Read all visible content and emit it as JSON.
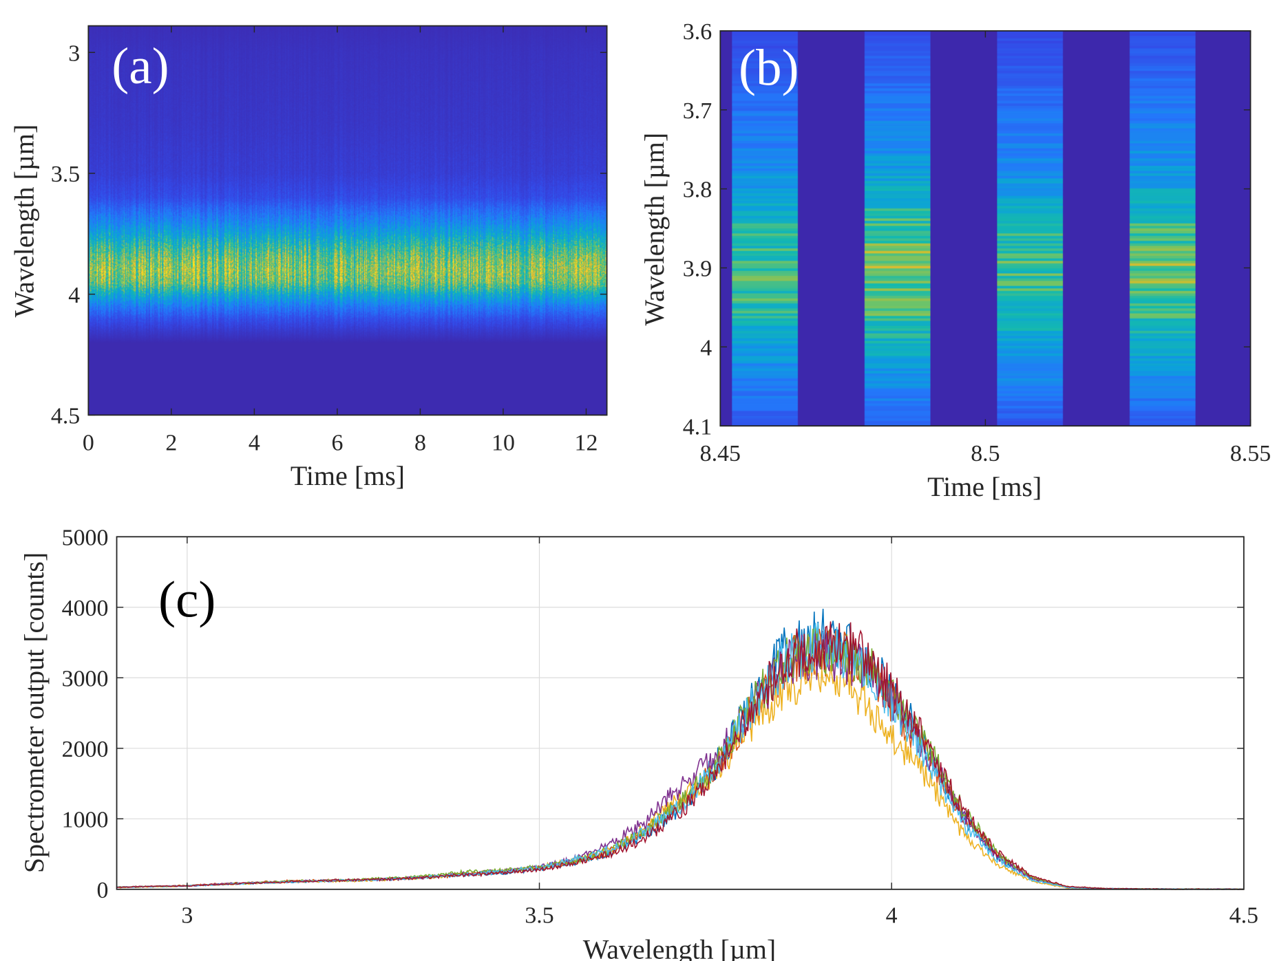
{
  "chart_data": [
    {
      "panel": "(a)",
      "type": "heatmap",
      "xlabel": "Time [ms]",
      "ylabel": "Wavelength [µm]",
      "xlim": [
        0,
        12.5
      ],
      "ylim": [
        2.89,
        4.5
      ],
      "y_reversed": true,
      "xticks": [
        0,
        2,
        4,
        6,
        8,
        10,
        12
      ],
      "xtick_labels": [
        "0",
        "2",
        "4",
        "6",
        "8",
        "10",
        "12"
      ],
      "yticks": [
        3,
        3.5,
        4,
        4.5
      ],
      "ytick_labels": [
        "3",
        "3.5",
        "4",
        "4.5"
      ],
      "colormap": "parula",
      "grid": false,
      "label_color": "#ffffff",
      "intensity_profile": {
        "wavelength": [
          2.89,
          3.0,
          3.3,
          3.5,
          3.6,
          3.7,
          3.75,
          3.8,
          3.85,
          3.9,
          3.95,
          4.0,
          4.05,
          4.1,
          4.15,
          4.2,
          4.5
        ],
        "relative": [
          0.02,
          0.04,
          0.06,
          0.09,
          0.15,
          0.35,
          0.48,
          0.62,
          0.74,
          0.8,
          0.74,
          0.5,
          0.3,
          0.16,
          0.07,
          0.0,
          0.0
        ]
      }
    },
    {
      "panel": "(b)",
      "type": "heatmap",
      "xlabel": "Time [ms]",
      "ylabel": "Wavelength [µm]",
      "xlim": [
        8.45,
        8.55
      ],
      "ylim": [
        3.6,
        4.1
      ],
      "y_reversed": true,
      "xticks": [
        8.45,
        8.5,
        8.55
      ],
      "xtick_labels": [
        "8.45",
        "8.5",
        "8.55"
      ],
      "yticks": [
        3.6,
        3.7,
        3.8,
        3.9,
        4.0,
        4.1
      ],
      "ytick_labels": [
        "3.6",
        "3.7",
        "3.8",
        "3.9",
        "4",
        "4.1"
      ],
      "colormap": "parula",
      "grid": false,
      "label_color": "#ffffff",
      "pulses": [
        {
          "start": 8.4522,
          "end": 8.4646,
          "scale": 0.95
        },
        {
          "start": 8.4772,
          "end": 8.4896,
          "scale": 1.07
        },
        {
          "start": 8.5022,
          "end": 8.5146,
          "scale": 0.95
        },
        {
          "start": 8.5272,
          "end": 8.5396,
          "scale": 1.05
        }
      ],
      "intensity_profile": {
        "wavelength": [
          3.6,
          3.65,
          3.7,
          3.75,
          3.8,
          3.85,
          3.9,
          3.95,
          4.0,
          4.05,
          4.1
        ],
        "relative": [
          0.16,
          0.22,
          0.3,
          0.36,
          0.46,
          0.62,
          0.7,
          0.64,
          0.48,
          0.34,
          0.2
        ]
      }
    },
    {
      "panel": "(c)",
      "type": "line",
      "xlabel": "Wavelength [µm]",
      "ylabel": "Spectrometer output [counts]",
      "xlim": [
        2.9,
        4.5
      ],
      "ylim": [
        0,
        5000
      ],
      "xticks": [
        3,
        3.5,
        4,
        4.5
      ],
      "xtick_labels": [
        "3",
        "3.5",
        "4",
        "4.5"
      ],
      "yticks": [
        0,
        1000,
        2000,
        3000,
        4000,
        5000
      ],
      "ytick_labels": [
        "0",
        "1000",
        "2000",
        "3000",
        "4000",
        "5000"
      ],
      "grid": true,
      "x": [
        2.9,
        2.95,
        3.0,
        3.05,
        3.1,
        3.15,
        3.2,
        3.25,
        3.3,
        3.35,
        3.4,
        3.45,
        3.5,
        3.55,
        3.6,
        3.65,
        3.7,
        3.75,
        3.8,
        3.85,
        3.9,
        3.95,
        4.0,
        4.05,
        4.1,
        4.15,
        4.2,
        4.25,
        4.3,
        4.35,
        4.4,
        4.45,
        4.5
      ],
      "series": [
        {
          "color": "#0072BD",
          "values": [
            30,
            40,
            50,
            70,
            90,
            110,
            120,
            130,
            150,
            180,
            210,
            240,
            290,
            380,
            520,
            780,
            1150,
            1750,
            2650,
            3400,
            3600,
            3450,
            2850,
            2000,
            1050,
            450,
            140,
            30,
            10,
            4,
            2,
            1,
            0
          ]
        },
        {
          "color": "#D95319",
          "values": [
            30,
            40,
            55,
            80,
            100,
            120,
            125,
            130,
            150,
            175,
            215,
            250,
            300,
            390,
            540,
            820,
            1250,
            1700,
            2500,
            3200,
            3400,
            3250,
            2650,
            1900,
            1050,
            480,
            160,
            35,
            10,
            4,
            2,
            1,
            0
          ]
        },
        {
          "color": "#EDB120",
          "values": [
            25,
            35,
            45,
            70,
            90,
            105,
            115,
            125,
            145,
            175,
            220,
            255,
            310,
            410,
            560,
            850,
            1300,
            1650,
            2300,
            2900,
            3000,
            2800,
            2200,
            1600,
            800,
            350,
            110,
            20,
            8,
            3,
            1,
            0,
            0
          ]
        },
        {
          "color": "#7E2F8E",
          "values": [
            30,
            40,
            50,
            75,
            95,
            115,
            120,
            130,
            150,
            180,
            225,
            260,
            310,
            430,
            650,
            950,
            1450,
            1850,
            2550,
            3200,
            3350,
            3200,
            2700,
            1950,
            1050,
            460,
            150,
            30,
            10,
            4,
            2,
            1,
            0
          ]
        },
        {
          "color": "#77AC30",
          "values": [
            30,
            40,
            50,
            70,
            95,
            115,
            125,
            140,
            160,
            200,
            250,
            270,
            310,
            400,
            560,
            820,
            1250,
            1750,
            2600,
            3250,
            3450,
            3300,
            2800,
            2050,
            1150,
            500,
            170,
            35,
            10,
            4,
            2,
            1,
            0
          ]
        },
        {
          "color": "#4DBEEE",
          "values": [
            30,
            40,
            50,
            70,
            90,
            110,
            120,
            130,
            150,
            180,
            215,
            250,
            310,
            420,
            560,
            800,
            1200,
            1700,
            2550,
            3250,
            3450,
            3300,
            2650,
            1850,
            950,
            420,
            130,
            25,
            8,
            3,
            1,
            0,
            0
          ]
        },
        {
          "color": "#A2142F",
          "values": [
            30,
            40,
            50,
            70,
            90,
            110,
            125,
            135,
            150,
            175,
            210,
            240,
            280,
            370,
            500,
            720,
            1100,
            1600,
            2500,
            3300,
            3500,
            3400,
            2850,
            2050,
            1150,
            520,
            180,
            40,
            12,
            5,
            2,
            1,
            0
          ]
        }
      ]
    }
  ]
}
